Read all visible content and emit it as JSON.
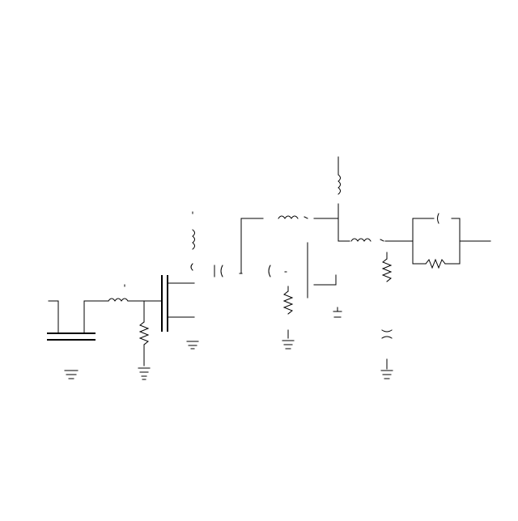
{
  "diagram": {
    "type": "circuit-schematic",
    "colors": {
      "background": "#ffffff",
      "line": "#000000"
    },
    "components": [
      "capacitor",
      "ground",
      "inductor",
      "resistor",
      "ground",
      "transistor",
      "ground",
      "inductor",
      "capacitor",
      "capacitor",
      "resistor",
      "ground",
      "inductor",
      "capacitor",
      "ground",
      "inductor",
      "inductor",
      "resistor",
      "capacitor",
      "ground",
      "capacitor",
      "resistor"
    ]
  }
}
